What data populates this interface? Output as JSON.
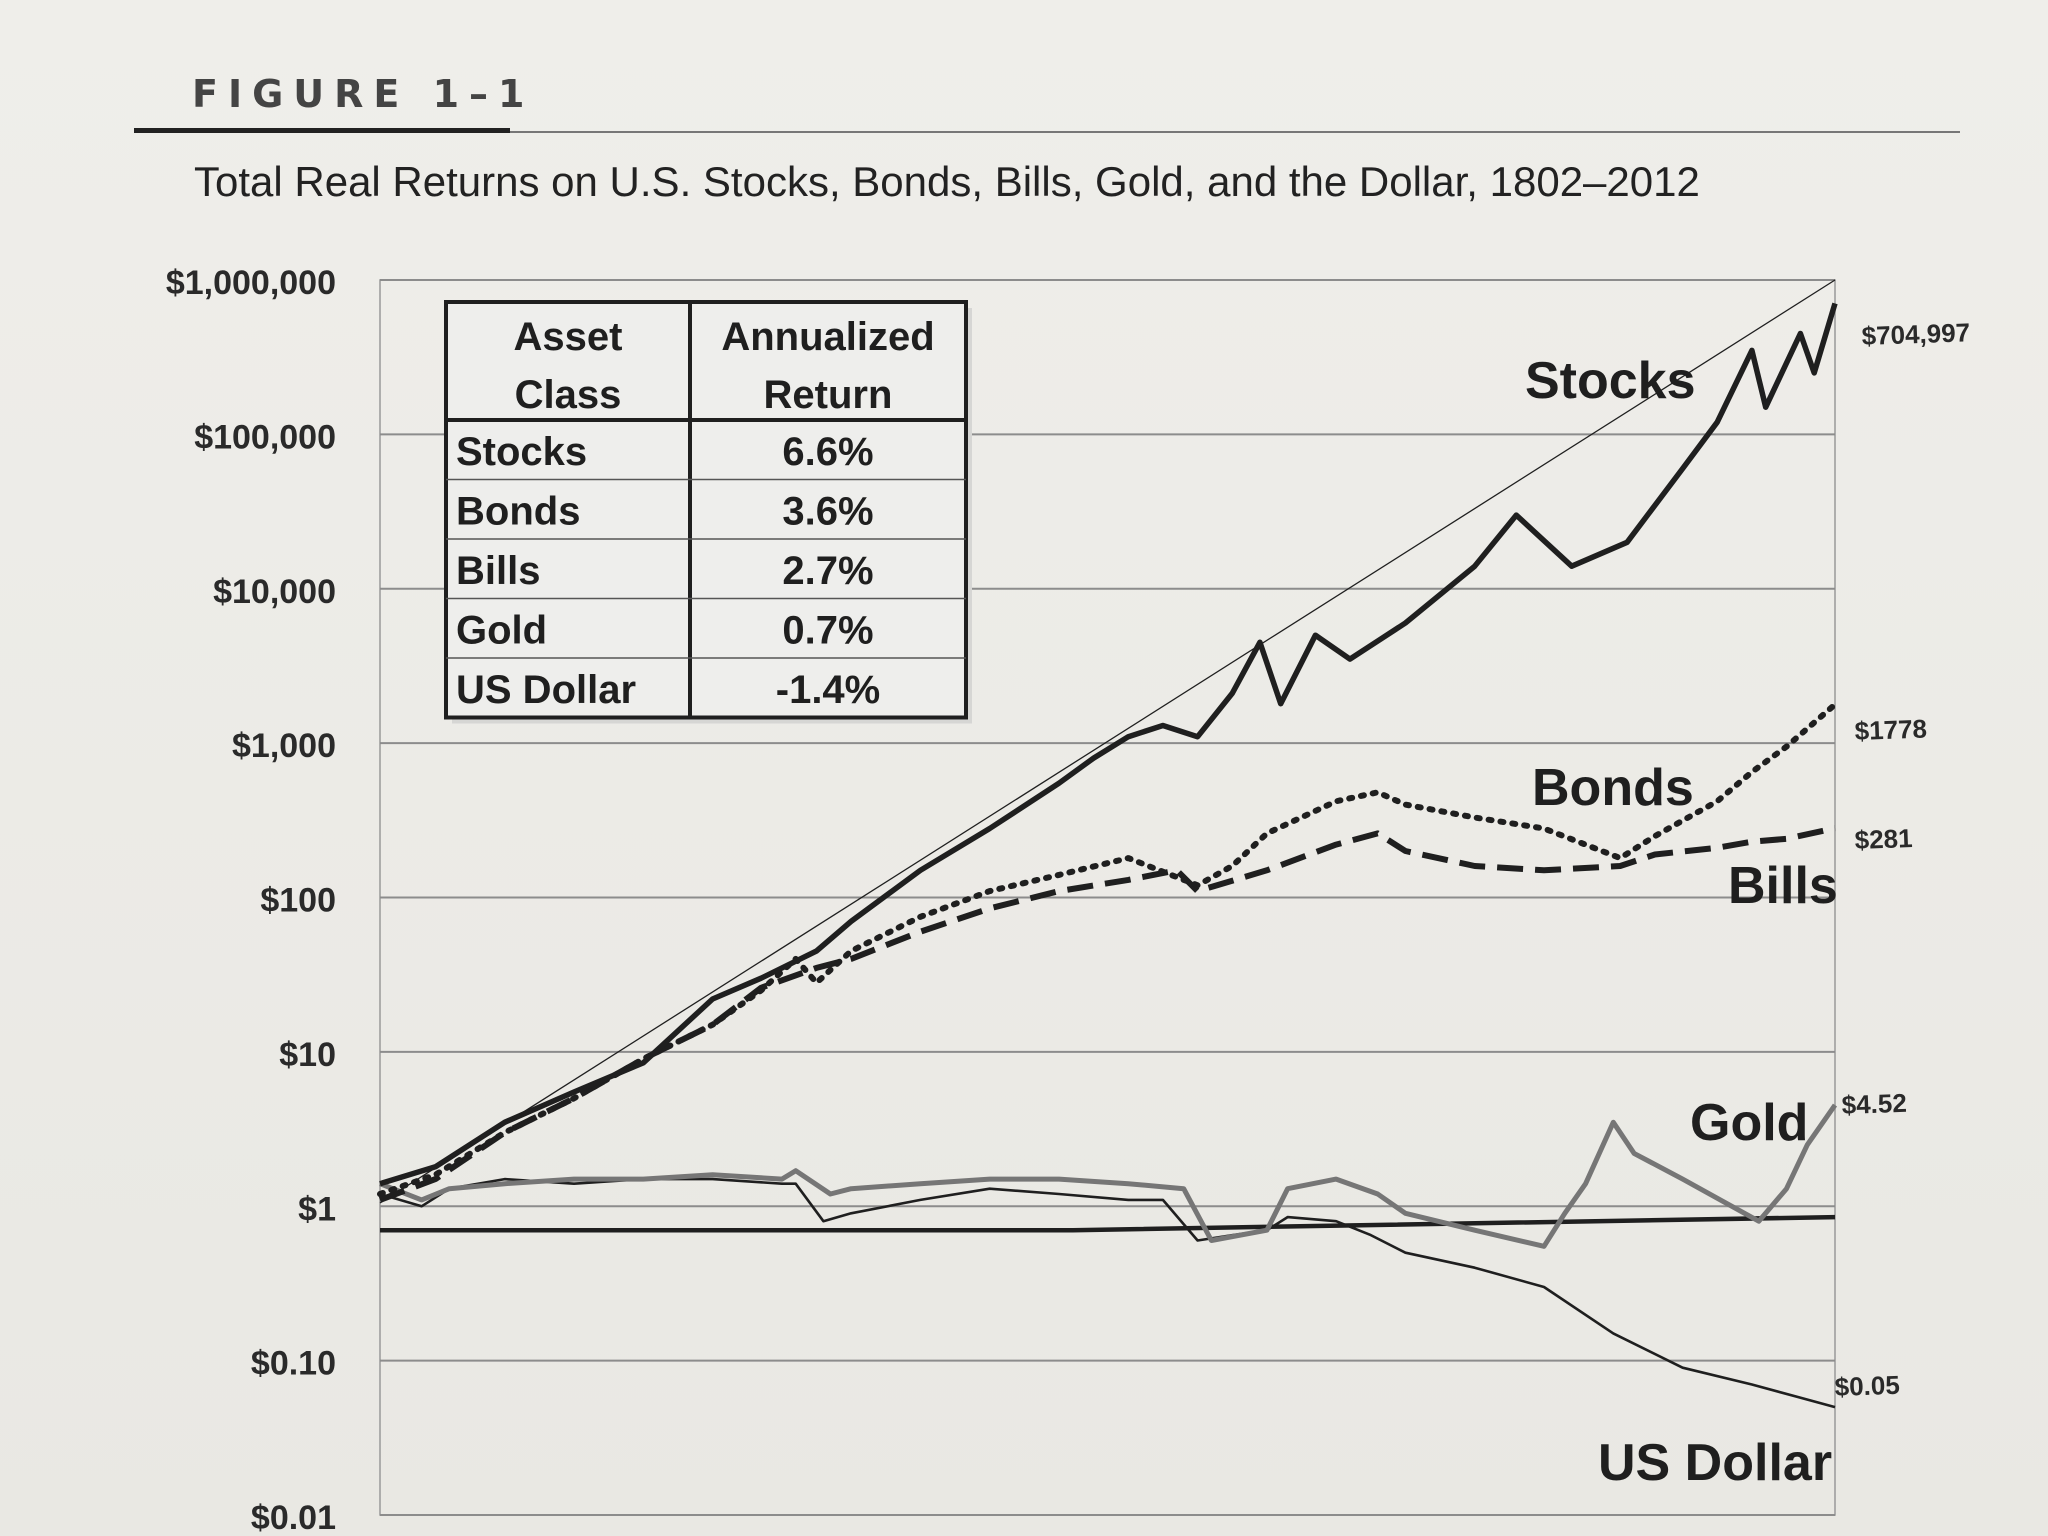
{
  "figure": {
    "label": "FIGURE 1–1",
    "title": "Total Real Returns on U.S. Stocks, Bonds, Bills, Gold, and the Dollar, 1802–2012"
  },
  "chart_data": {
    "type": "line",
    "title": "Total Real Returns on U.S. Stocks, Bonds, Bills, Gold, and the Dollar, 1802–2012",
    "y_scale": "log",
    "ylim": [
      0.01,
      1000000
    ],
    "xlim": [
      1802,
      2012
    ],
    "y_ticks": [
      0.01,
      0.1,
      1,
      10,
      100,
      1000,
      10000,
      100000,
      1000000
    ],
    "y_tick_labels": [
      "$0.01",
      "$0.10",
      "$1",
      "$10",
      "$100",
      "$1,000",
      "$10,000",
      "$100,000",
      "$1,000,000"
    ],
    "grid": "horizontal",
    "series": [
      {
        "name": "Stocks",
        "style": "thick-solid",
        "color": "#1f1f1f",
        "end_label": "$704,997",
        "x": [
          1802,
          1810,
          1820,
          1830,
          1840,
          1850,
          1857,
          1865,
          1870,
          1880,
          1890,
          1900,
          1905,
          1910,
          1915,
          1920,
          1925,
          1929,
          1932,
          1937,
          1942,
          1950,
          1960,
          1966,
          1974,
          1982,
          1990,
          1995,
          2000,
          2002,
          2007,
          2009,
          2012
        ],
        "y": [
          1.4,
          1.8,
          3.5,
          5.5,
          8.5,
          22,
          30,
          45,
          70,
          150,
          280,
          550,
          800,
          1100,
          1300,
          1100,
          2100,
          4500,
          1800,
          5000,
          3500,
          6000,
          14000,
          30000,
          14000,
          20000,
          60000,
          120000,
          350000,
          150000,
          450000,
          250000,
          704997
        ]
      },
      {
        "name": "Bonds",
        "style": "dotted",
        "color": "#1f1f1f",
        "end_label": "$1778",
        "x": [
          1802,
          1810,
          1820,
          1830,
          1840,
          1850,
          1857,
          1862,
          1865,
          1870,
          1880,
          1890,
          1900,
          1910,
          1920,
          1925,
          1930,
          1940,
          1946,
          1950,
          1960,
          1970,
          1981,
          1986,
          1995,
          2000,
          2005,
          2012
        ],
        "y": [
          1.2,
          1.6,
          3,
          5,
          9,
          15,
          25,
          40,
          28,
          45,
          75,
          110,
          140,
          180,
          120,
          160,
          260,
          420,
          480,
          400,
          330,
          280,
          180,
          250,
          420,
          650,
          950,
          1778
        ]
      },
      {
        "name": "Bills",
        "style": "dashed",
        "color": "#1f1f1f",
        "end_label": "$281",
        "x": [
          1802,
          1810,
          1820,
          1830,
          1840,
          1850,
          1857,
          1865,
          1870,
          1880,
          1890,
          1900,
          1910,
          1917,
          1920,
          1930,
          1940,
          1946,
          1950,
          1960,
          1970,
          1981,
          1986,
          1995,
          2000,
          2005,
          2012
        ],
        "y": [
          1.1,
          1.5,
          3,
          5,
          9,
          15,
          26,
          35,
          40,
          60,
          85,
          110,
          130,
          150,
          110,
          150,
          220,
          260,
          200,
          160,
          150,
          160,
          190,
          210,
          230,
          240,
          281
        ]
      },
      {
        "name": "Gold",
        "style": "gray-solid",
        "color": "#767676",
        "end_label": "$4.52",
        "x": [
          1802,
          1808,
          1812,
          1820,
          1830,
          1840,
          1850,
          1860,
          1862,
          1867,
          1870,
          1880,
          1890,
          1900,
          1910,
          1918,
          1922,
          1930,
          1933,
          1940,
          1946,
          1950,
          1960,
          1970,
          1973,
          1976,
          1980,
          1983,
          1990,
          2001,
          2005,
          2008,
          2012
        ],
        "y": [
          1.4,
          1.1,
          1.3,
          1.4,
          1.5,
          1.5,
          1.6,
          1.5,
          1.7,
          1.2,
          1.3,
          1.4,
          1.5,
          1.5,
          1.4,
          1.3,
          0.6,
          0.7,
          1.3,
          1.5,
          1.2,
          0.9,
          0.7,
          0.55,
          0.9,
          1.4,
          3.5,
          2.2,
          1.5,
          0.8,
          1.3,
          2.5,
          4.52
        ]
      },
      {
        "name": "US Dollar",
        "style": "thin-solid",
        "color": "#1f1f1f",
        "end_label": "$0.05",
        "x": [
          1802,
          1808,
          1812,
          1820,
          1830,
          1840,
          1850,
          1860,
          1862,
          1866,
          1870,
          1880,
          1890,
          1900,
          1910,
          1915,
          1920,
          1925,
          1930,
          1933,
          1940,
          1945,
          1950,
          1960,
          1970,
          1980,
          1990,
          2000,
          2012
        ],
        "y": [
          1.2,
          1,
          1.3,
          1.5,
          1.4,
          1.5,
          1.5,
          1.4,
          1.4,
          0.8,
          0.9,
          1.1,
          1.3,
          1.2,
          1.1,
          1.1,
          0.6,
          0.65,
          0.7,
          0.85,
          0.8,
          0.65,
          0.5,
          0.4,
          0.3,
          0.15,
          0.09,
          0.07,
          0.05
        ]
      },
      {
        "name": "Trend",
        "style": "reference",
        "color": "#1f1f1f",
        "x": [
          1802,
          1902,
          2012
        ],
        "y": [
          0.7,
          0.7,
          0.85
        ]
      },
      {
        "name": "Stocks trendline",
        "style": "trendline",
        "color": "#1f1f1f",
        "x": [
          1802,
          2012
        ],
        "y": [
          1.05,
          1000000
        ]
      }
    ],
    "table": {
      "headers": [
        "Asset Class",
        "Annualized Return"
      ],
      "rows": [
        [
          "Stocks",
          "6.6%"
        ],
        [
          "Bonds",
          "3.6%"
        ],
        [
          "Bills",
          "2.7%"
        ],
        [
          "Gold",
          "0.7%"
        ],
        [
          "US Dollar",
          "-1.4%"
        ]
      ]
    }
  }
}
